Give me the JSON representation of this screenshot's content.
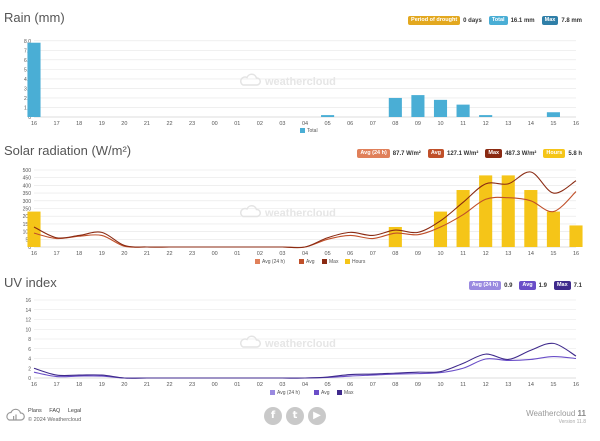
{
  "rain": {
    "title": "Rain (mm)",
    "badges": [
      {
        "label": "Period of drought",
        "value": "0 days",
        "color": "#e3a81f"
      },
      {
        "label": "Total",
        "value": "16.1 mm",
        "color": "#4aaed5"
      },
      {
        "label": "Max",
        "value": "7.8 mm",
        "color": "#2f7fa8"
      }
    ],
    "legend": [
      "Total"
    ]
  },
  "solar": {
    "title": "Solar radiation (W/m²)",
    "badges": [
      {
        "label": "Avg (24 h)",
        "value": "87.7 W/m²",
        "color": "#e0805a"
      },
      {
        "label": "Avg",
        "value": "127.1 W/m²",
        "color": "#c0502a"
      },
      {
        "label": "Max",
        "value": "487.3 W/m²",
        "color": "#8a2a12"
      },
      {
        "label": "Hours",
        "value": "5.8 h",
        "color": "#f5c518"
      }
    ],
    "legend": [
      "Avg (24 h)",
      "Avg",
      "Max",
      "Hours"
    ]
  },
  "uv": {
    "title": "UV index",
    "badges": [
      {
        "label": "Avg (24 h)",
        "value": "0.9",
        "color": "#9a8ae0"
      },
      {
        "label": "Avg",
        "value": "1.9",
        "color": "#6a4ec8"
      },
      {
        "label": "Max",
        "value": "7.1",
        "color": "#3f2a8c"
      }
    ],
    "legend": [
      "Avg (24 h)",
      "Avg",
      "Max"
    ]
  },
  "watermark": "weathercloud",
  "footer": {
    "links": [
      "Plans",
      "FAQ",
      "Legal"
    ],
    "copyright": "© 2024 Weathercloud",
    "brand_name": "Weathercloud",
    "brand_num": "11",
    "version": "Version 11.8"
  },
  "chart_data": [
    {
      "type": "bar",
      "title": "Rain (mm)",
      "categories": [
        "16",
        "17",
        "18",
        "19",
        "20",
        "21",
        "22",
        "23",
        "00",
        "01",
        "02",
        "03",
        "04",
        "05",
        "06",
        "07",
        "08",
        "09",
        "10",
        "11",
        "12",
        "13",
        "14",
        "15",
        "16"
      ],
      "yticks": [
        "0",
        "1.0",
        "2.0",
        "3.0",
        "4.0",
        "5.0",
        "6.0",
        "7.0",
        "8.0"
      ],
      "ylim": [
        0,
        8.4
      ],
      "series": [
        {
          "name": "Total",
          "color": "#4aaed5",
          "values": [
            7.8,
            0,
            0,
            0,
            0,
            0,
            0,
            0,
            0,
            0,
            0,
            0,
            0,
            0.2,
            0,
            0,
            2.0,
            2.3,
            1.8,
            1.3,
            0.2,
            0,
            0,
            0.5,
            0
          ]
        }
      ]
    },
    {
      "type": "bar",
      "title": "Solar radiation (W/m²)",
      "categories": [
        "16",
        "17",
        "18",
        "19",
        "20",
        "21",
        "22",
        "23",
        "00",
        "01",
        "02",
        "03",
        "04",
        "05",
        "06",
        "07",
        "08",
        "09",
        "10",
        "11",
        "12",
        "13",
        "14",
        "15",
        "16"
      ],
      "yticks": [
        "0",
        "50",
        "100",
        "150",
        "200",
        "250",
        "300",
        "350",
        "400",
        "450",
        "500"
      ],
      "ylim": [
        0,
        500
      ],
      "series": [
        {
          "name": "Hours",
          "color": "#f5c518",
          "values": [
            230,
            0,
            0,
            0,
            0,
            0,
            0,
            0,
            0,
            0,
            0,
            0,
            0,
            0,
            0,
            0,
            130,
            0,
            230,
            370,
            465,
            465,
            370,
            230,
            140
          ]
        },
        {
          "name": "Avg",
          "color": "#c0502a",
          "values": [
            90,
            55,
            70,
            75,
            5,
            0,
            0,
            0,
            0,
            0,
            0,
            0,
            0,
            50,
            75,
            55,
            90,
            80,
            130,
            210,
            310,
            320,
            300,
            230,
            360
          ]
        },
        {
          "name": "Max",
          "color": "#8a2a12",
          "values": [
            130,
            60,
            75,
            95,
            10,
            0,
            0,
            0,
            0,
            0,
            0,
            0,
            0,
            60,
            95,
            75,
            110,
            95,
            170,
            290,
            410,
            410,
            487,
            350,
            430
          ]
        }
      ]
    },
    {
      "type": "line",
      "title": "UV index",
      "categories": [
        "16",
        "17",
        "18",
        "19",
        "20",
        "21",
        "22",
        "23",
        "00",
        "01",
        "02",
        "03",
        "04",
        "05",
        "06",
        "07",
        "08",
        "09",
        "10",
        "11",
        "12",
        "13",
        "14",
        "15",
        "16"
      ],
      "yticks": [
        "0",
        "2",
        "4",
        "6",
        "8",
        "10",
        "12",
        "14",
        "16"
      ],
      "ylim": [
        0,
        16
      ],
      "series": [
        {
          "name": "Avg",
          "color": "#6a4ec8",
          "values": [
            1.2,
            0.3,
            0.4,
            0.4,
            0,
            0,
            0,
            0,
            0,
            0,
            0,
            0,
            0,
            0.1,
            0.4,
            0.6,
            0.8,
            0.9,
            1.1,
            2.0,
            3.9,
            3.6,
            3.8,
            4.4,
            4.0
          ]
        },
        {
          "name": "Max",
          "color": "#3f2a8c",
          "values": [
            2.0,
            0.6,
            0.6,
            0.6,
            0,
            0,
            0,
            0,
            0,
            0,
            0,
            0,
            0,
            0.2,
            0.7,
            0.8,
            1.0,
            1.2,
            1.3,
            3.0,
            4.9,
            3.8,
            5.7,
            7.1,
            4.5
          ]
        }
      ]
    }
  ]
}
